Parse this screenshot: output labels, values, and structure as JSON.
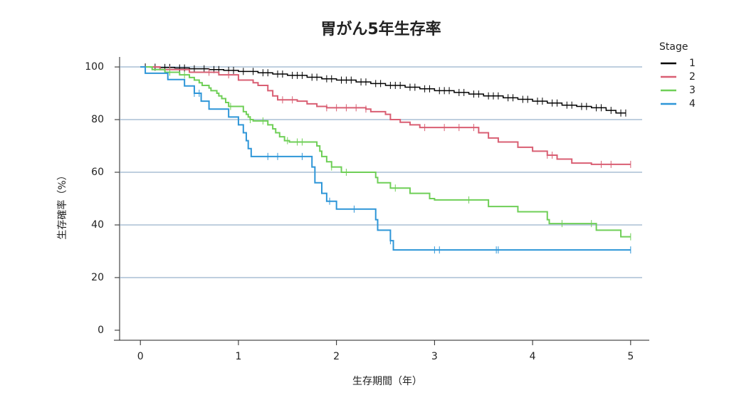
{
  "chart_data": {
    "type": "step",
    "title": "胃がん5年生存率",
    "x_label": "生存期間（年）",
    "y_label": "生存確率（%）",
    "legend_title": "Stage",
    "legend_position": "right",
    "xlim": [
      -0.27,
      5.19
    ],
    "xticks": [
      0,
      1,
      2,
      3,
      4,
      5
    ],
    "ylim": [
      -3.8,
      103.8
    ],
    "yticks": [
      0,
      20,
      40,
      60,
      80,
      100
    ],
    "grid": true,
    "grid_color": "#7f9fbf",
    "series": [
      {
        "name": "1",
        "color": "#000000",
        "x": [
          0,
          0.1,
          0.2,
          0.35,
          0.5,
          0.7,
          0.85,
          1.0,
          1.2,
          1.35,
          1.5,
          1.7,
          1.85,
          2.0,
          2.2,
          2.35,
          2.5,
          2.7,
          2.85,
          3.0,
          3.2,
          3.35,
          3.5,
          3.7,
          3.85,
          4.0,
          4.15,
          4.3,
          4.45,
          4.6,
          4.75,
          4.85,
          4.95
        ],
        "values": [
          100,
          99.9,
          99.8,
          99.6,
          99.3,
          99,
          98.7,
          98.3,
          97.8,
          97.3,
          96.8,
          96.1,
          95.5,
          95,
          94.3,
          93.7,
          93,
          92.3,
          91.7,
          91,
          90.3,
          89.7,
          89,
          88.3,
          87.7,
          87,
          86.3,
          85.5,
          85,
          84.5,
          83.5,
          82.5,
          82.5
        ],
        "censored": [
          0.05,
          0.15,
          0.25,
          0.3,
          0.4,
          0.45,
          0.55,
          0.65,
          0.75,
          0.8,
          0.9,
          0.95,
          1.05,
          1.15,
          1.25,
          1.3,
          1.4,
          1.45,
          1.55,
          1.6,
          1.65,
          1.75,
          1.8,
          1.9,
          1.95,
          2.05,
          2.1,
          2.15,
          2.25,
          2.3,
          2.4,
          2.45,
          2.55,
          2.6,
          2.65,
          2.75,
          2.8,
          2.9,
          2.95,
          3.05,
          3.1,
          3.15,
          3.25,
          3.3,
          3.4,
          3.45,
          3.55,
          3.6,
          3.65,
          3.75,
          3.8,
          3.9,
          3.95,
          4.05,
          4.1,
          4.2,
          4.25,
          4.35,
          4.4,
          4.5,
          4.55,
          4.65,
          4.7,
          4.8,
          4.9,
          4.95
        ]
      },
      {
        "name": "2",
        "color": "#d95f73",
        "x": [
          0,
          0.2,
          0.5,
          0.8,
          1.0,
          1.15,
          1.2,
          1.3,
          1.35,
          1.4,
          1.6,
          1.7,
          1.8,
          1.9,
          2.3,
          2.35,
          2.5,
          2.55,
          2.65,
          2.75,
          2.85,
          3.45,
          3.55,
          3.65,
          3.85,
          4.0,
          4.15,
          4.25,
          4.4,
          4.6,
          5.0
        ],
        "values": [
          100,
          99,
          98,
          97,
          95,
          94,
          93,
          91,
          89,
          87.5,
          87,
          86,
          85,
          84.5,
          84,
          83,
          82,
          80,
          79,
          78,
          77,
          75,
          73,
          71.5,
          69.5,
          68,
          66.5,
          65,
          63.5,
          63,
          63
        ],
        "censored": [
          0.3,
          0.7,
          0.9,
          1.45,
          1.55,
          1.9,
          2.0,
          2.1,
          2.2,
          2.3,
          2.9,
          3.1,
          3.25,
          3.4,
          4.15,
          4.2,
          4.7,
          4.8,
          5.0
        ]
      },
      {
        "name": "3",
        "color": "#6fcf57",
        "x": [
          0,
          0.12,
          0.25,
          0.4,
          0.5,
          0.55,
          0.6,
          0.63,
          0.7,
          0.72,
          0.78,
          0.8,
          0.83,
          0.87,
          0.9,
          1.05,
          1.08,
          1.1,
          1.12,
          1.15,
          1.3,
          1.35,
          1.38,
          1.42,
          1.47,
          1.52,
          1.8,
          1.83,
          1.85,
          1.9,
          1.95,
          2.05,
          2.4,
          2.42,
          2.55,
          2.75,
          2.95,
          3.0,
          3.55,
          3.85,
          4.15,
          4.17,
          4.65,
          4.9,
          5.0
        ],
        "values": [
          100,
          99,
          98,
          97,
          96,
          95,
          94,
          93,
          92,
          91,
          90,
          89,
          88,
          86.5,
          85,
          83,
          82,
          81,
          80,
          79.5,
          78,
          76.5,
          75,
          73.5,
          72,
          71.5,
          70,
          68,
          66,
          64,
          62,
          60,
          58,
          56,
          54,
          52,
          50,
          49.5,
          47,
          45,
          42,
          40.5,
          38,
          35.5,
          35.5
        ],
        "censored": [
          0.3,
          0.45,
          0.92,
          1.12,
          1.25,
          1.5,
          1.6,
          1.65,
          1.95,
          2.1,
          2.6,
          3.35,
          4.3,
          4.6,
          5.0
        ]
      },
      {
        "name": "4",
        "color": "#2e96d8",
        "x": [
          0,
          0.05,
          0.28,
          0.45,
          0.55,
          0.62,
          0.7,
          0.9,
          1.0,
          1.05,
          1.08,
          1.1,
          1.13,
          1.75,
          1.78,
          1.85,
          1.9,
          2.0,
          2.4,
          2.42,
          2.55,
          2.58,
          5.0
        ],
        "values": [
          100,
          97.6,
          95.2,
          92.8,
          90,
          87,
          84,
          81,
          78,
          75,
          72,
          69,
          66,
          62,
          56,
          52,
          49,
          46,
          42,
          38,
          34,
          30.5,
          30.5
        ],
        "censored": [
          0.55,
          0.6,
          1.3,
          1.4,
          1.65,
          1.93,
          2.18,
          2.55,
          3.0,
          3.05,
          3.63,
          3.65,
          5.0
        ]
      }
    ]
  }
}
